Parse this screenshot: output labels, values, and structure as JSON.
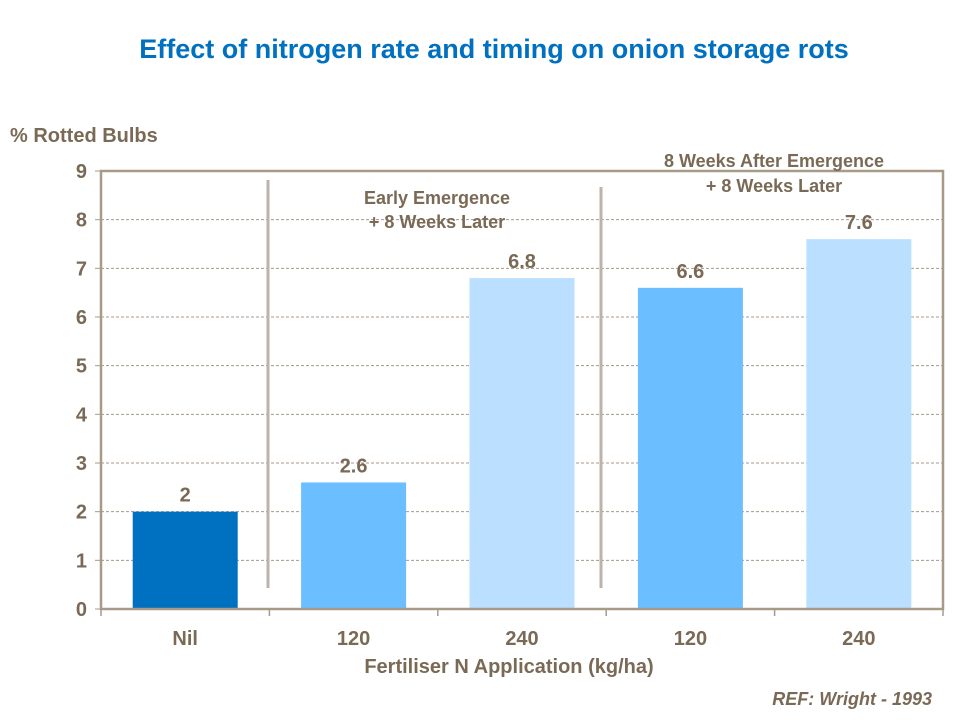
{
  "chart_data": {
    "type": "bar",
    "title": "Effect of nitrogen rate and timing on onion storage rots",
    "ylabel": "% Rotted Bulbs",
    "xlabel": "Fertiliser N  Application (kg/ha)",
    "categories": [
      "Nil",
      "120",
      "240",
      "120",
      "240"
    ],
    "values": [
      2,
      2.6,
      6.8,
      6.6,
      7.6
    ],
    "data_labels": [
      "2",
      "2.6",
      "6.8",
      "6.6",
      "7.6"
    ],
    "bar_colors": [
      "#0070C0",
      "#6BBEFF",
      "#BBE0FF",
      "#6BBEFF",
      "#BBE0FF"
    ],
    "ylim": [
      0,
      9
    ],
    "yticks": [
      "0",
      "1",
      "2",
      "3",
      "4",
      "5",
      "6",
      "7",
      "8",
      "9"
    ],
    "grid": true,
    "group_annotations": [
      {
        "lines": [
          "Early Emergence",
          "+ 8 Weeks Later"
        ]
      },
      {
        "lines": [
          "8 Weeks After Emergence",
          "+ 8 Weeks Later"
        ]
      }
    ],
    "text_color": "#7A6A55",
    "title_color": "#0070C0"
  },
  "reference": "REF: Wright - 1993"
}
